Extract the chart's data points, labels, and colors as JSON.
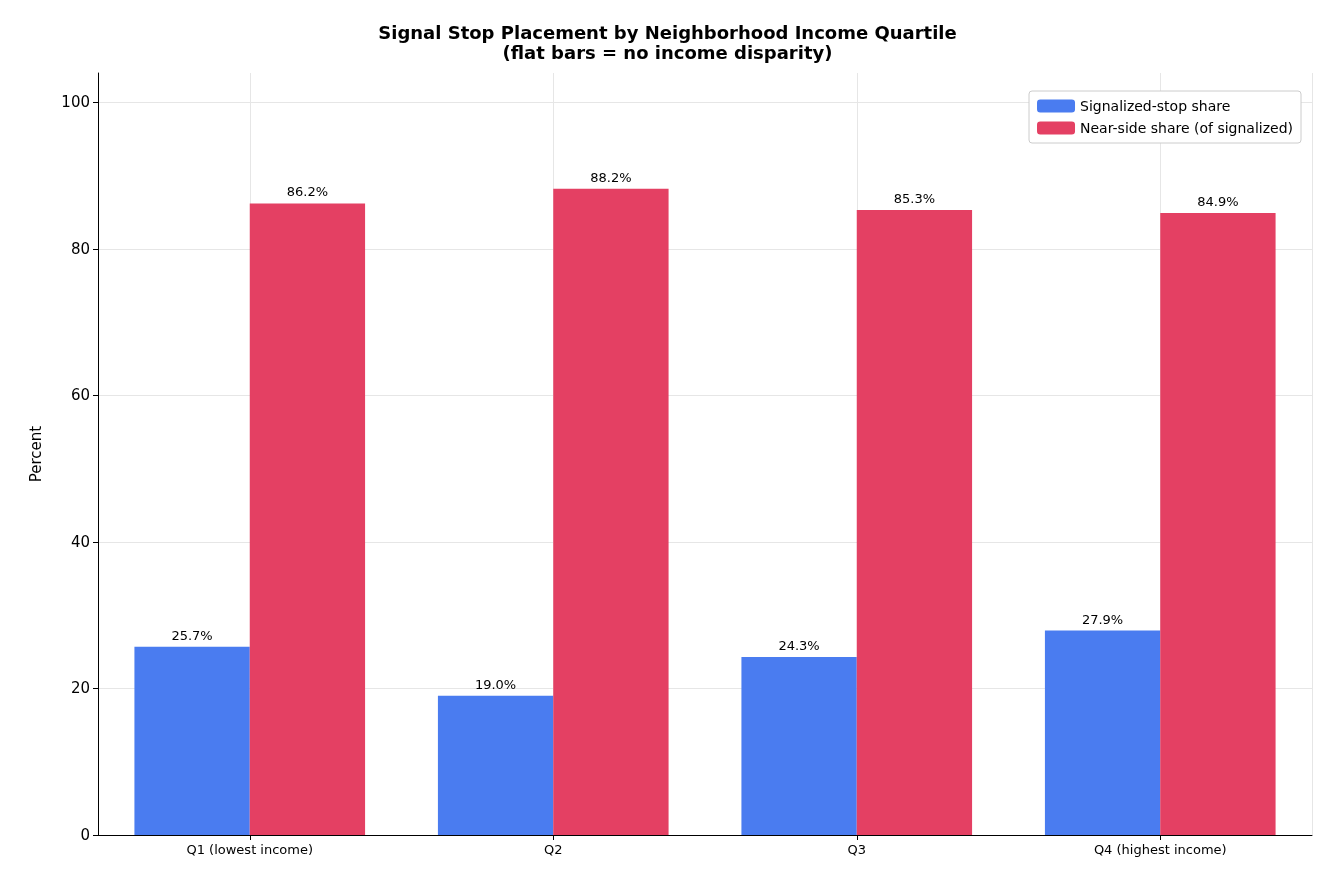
{
  "chart_data": {
    "type": "bar",
    "title": "Signal Stop Placement by Neighborhood Income Quartile",
    "subtitle": "(flat bars = no income disparity)",
    "ylabel": "Percent",
    "categories": [
      "Q1 (lowest income)",
      "Q2",
      "Q3",
      "Q4 (highest income)"
    ],
    "series": [
      {
        "name": "Signalized-stop share",
        "color": "#4a7cf0",
        "values": [
          25.7,
          19.0,
          24.3,
          27.9
        ],
        "value_labels": [
          "25.7%",
          "19.0%",
          "24.3%",
          "27.9%"
        ]
      },
      {
        "name": "Near-side share (of signalized)",
        "color": "#e44063",
        "values": [
          86.2,
          88.2,
          85.3,
          84.9
        ],
        "value_labels": [
          "86.2%",
          "88.2%",
          "85.3%",
          "84.9%"
        ]
      }
    ],
    "ylim": [
      0,
      104
    ],
    "yticks": [
      0,
      20,
      40,
      60,
      80,
      100
    ],
    "grid": true,
    "legend": "top right"
  }
}
